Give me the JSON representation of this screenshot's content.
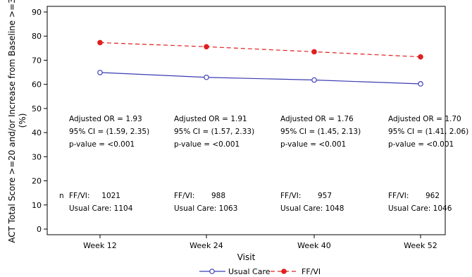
{
  "chart_data": {
    "type": "line",
    "categories": [
      "Week 12",
      "Week 24",
      "Week 40",
      "Week 52"
    ],
    "series": [
      {
        "name": "Usual Care",
        "values": [
          64.9,
          62.9,
          61.8,
          60.2
        ],
        "color": "#3c3cb4",
        "marker": "open-circle",
        "line": "solid"
      },
      {
        "name": "FF/VI",
        "values": [
          77.3,
          75.6,
          73.5,
          71.4
        ],
        "color": "#e02020",
        "marker": "filled-circle",
        "line": "dashed"
      }
    ],
    "xlabel": "Visit",
    "ylabel": "ACT Total Score >=20 and/or Increase from Baseline >=3 (%)",
    "ylabel_lines": [
      "ACT Total Score >=20 and/or Increase from Baseline >=3",
      "(%)"
    ],
    "ylim": [
      0,
      90
    ],
    "yticks": [
      0,
      10,
      20,
      30,
      40,
      50,
      60,
      70,
      80,
      90
    ],
    "grid": false,
    "legend_placement": "bottom",
    "annotations": [
      {
        "or": "Adjusted OR = 1.93",
        "ci": "95% CI = (1.59, 2.35)",
        "p": "p-value = <0.001",
        "ffvi_label": "FF/VI:",
        "ffvi_n": "1021",
        "uc": "Usual Care: 1104"
      },
      {
        "or": "Adjusted OR = 1.91",
        "ci": "95% CI = (1.57, 2.33)",
        "p": "p-value = <0.001",
        "ffvi_label": "FF/VI:",
        "ffvi_n": "988",
        "uc": "Usual Care: 1063"
      },
      {
        "or": "Adjusted OR = 1.76",
        "ci": "95% CI = (1.45, 2.13)",
        "p": "p-value = <0.001",
        "ffvi_label": "FF/VI:",
        "ffvi_n": "957",
        "uc": "Usual Care: 1048"
      },
      {
        "or": "Adjusted OR = 1.70",
        "ci": "95% CI = (1.41, 2.06)",
        "p": "p-value = <0.001",
        "ffvi_label": "FF/VI:",
        "ffvi_n": "962",
        "uc": "Usual Care: 1046"
      }
    ],
    "n_label": "n"
  }
}
